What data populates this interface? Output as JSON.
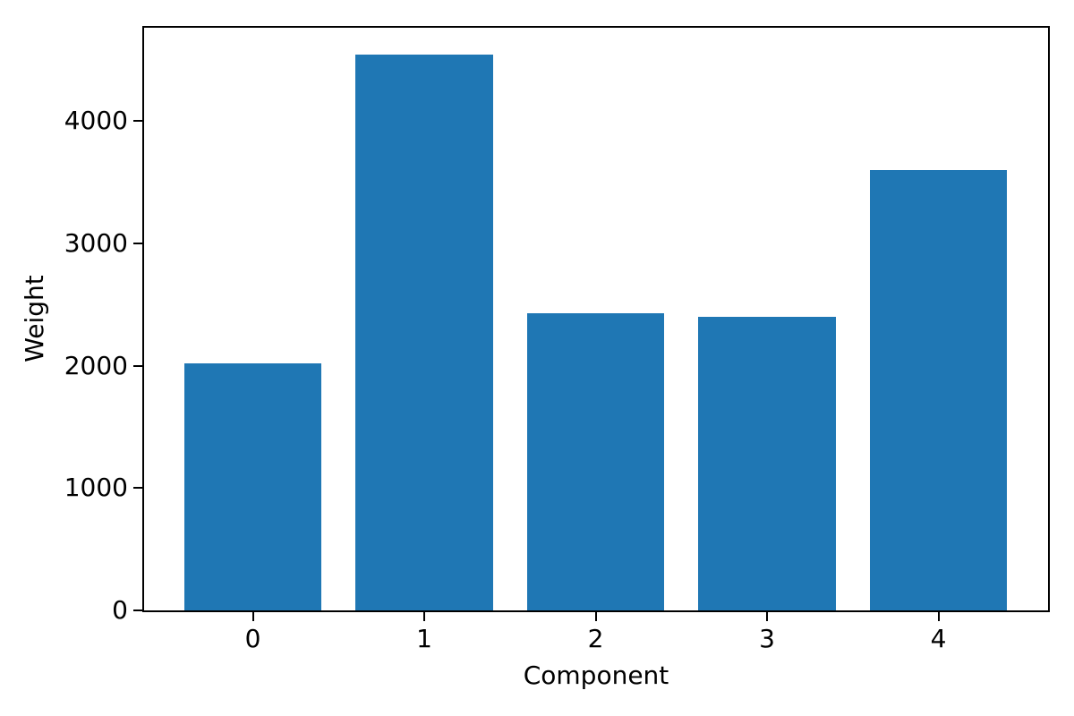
{
  "chart_data": {
    "type": "bar",
    "title": "",
    "xlabel": "Component",
    "ylabel": "Weight",
    "categories": [
      "0",
      "1",
      "2",
      "3",
      "4"
    ],
    "values": [
      2020,
      4540,
      2430,
      2400,
      3600
    ],
    "yticks": [
      0,
      1000,
      2000,
      3000,
      4000
    ],
    "ylim": [
      0,
      4770
    ],
    "xlim": [
      -0.64,
      4.64
    ],
    "bar_width": 0.8,
    "bar_color": "#1f77b4",
    "axis_color": "#000000",
    "text_color": "#000000",
    "background_color": "#ffffff",
    "grid": false,
    "legend": "none"
  }
}
